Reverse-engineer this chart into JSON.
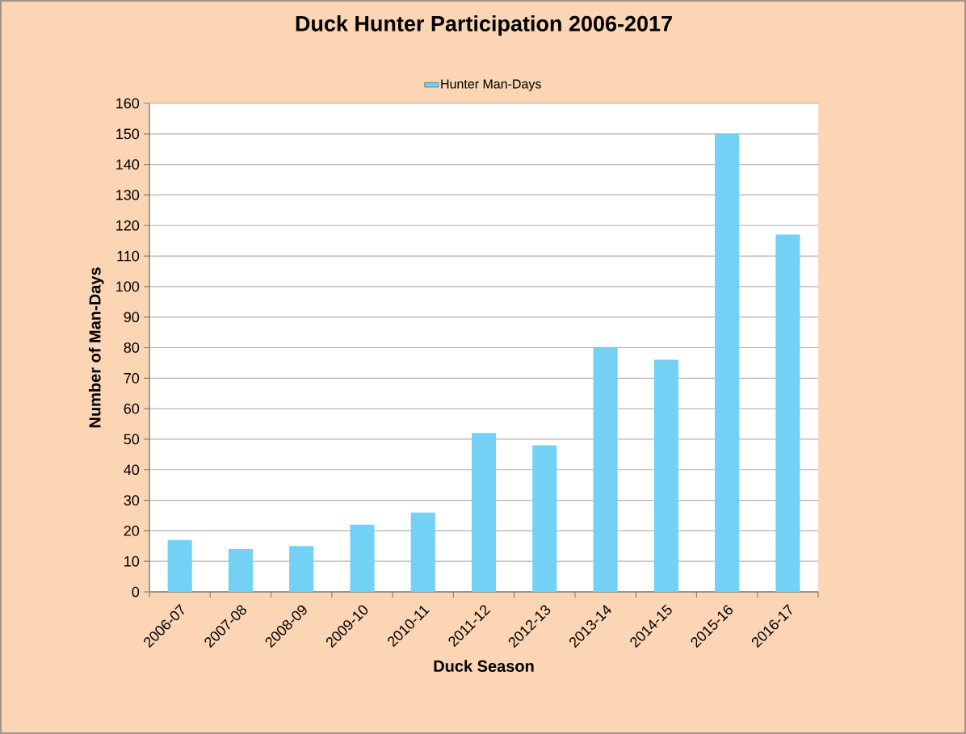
{
  "chart_data": {
    "type": "bar",
    "title": "Duck Hunter Participation 2006-2017",
    "xlabel": "Duck Season",
    "ylabel": "Number of Man-Days",
    "categories": [
      "2006-07",
      "2007-08",
      "2008-09",
      "2009-10",
      "2010-11",
      "2011-12",
      "2012-13",
      "2013-14",
      "2014-15",
      "2015-16",
      "2016-17"
    ],
    "series": [
      {
        "name": "Hunter Man-Days",
        "color": "#72d1f4",
        "values": [
          17,
          14,
          15,
          22,
          26,
          52,
          48,
          80,
          76,
          150,
          117
        ]
      }
    ],
    "ylim": [
      0,
      160
    ],
    "yticks": [
      0,
      10,
      20,
      30,
      40,
      50,
      60,
      70,
      80,
      90,
      100,
      110,
      120,
      130,
      140,
      150,
      160
    ],
    "grid": "y",
    "legend": "top"
  }
}
